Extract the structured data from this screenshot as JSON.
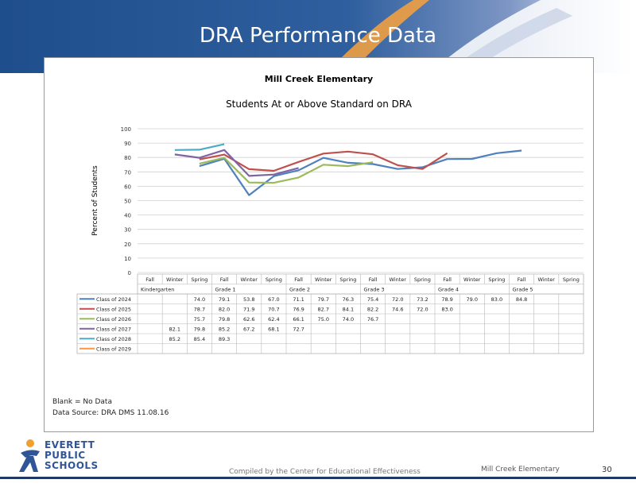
{
  "slide": {
    "title": "DRA Performance Data",
    "footer_center": "Compiled by the Center for Educational Effectiveness",
    "footer_right": "Mill Creek Elementary",
    "page_number": "30",
    "logo_lines": [
      "EVERETT",
      "PUBLIC",
      "SCHOOLS"
    ]
  },
  "notes": [
    "Blank = No Data",
    "Data Source: DRA DMS 11.08.16"
  ],
  "chart_data": {
    "type": "line",
    "title": "Mill Creek Elementary",
    "subtitle": "Students At or Above Standard on DRA",
    "ylabel": "Percent of Students",
    "ylim": [
      0,
      100
    ],
    "yticks": [
      0,
      10,
      20,
      30,
      40,
      50,
      60,
      70,
      80,
      90,
      100
    ],
    "grid": true,
    "legend_position": "table-left",
    "categories": [
      "Fall",
      "Winter",
      "Spring",
      "Fall",
      "Winter",
      "Spring",
      "Fall",
      "Winter",
      "Spring",
      "Fall",
      "Winter",
      "Spring",
      "Fall",
      "Winter",
      "Spring",
      "Fall",
      "Winter",
      "Spring"
    ],
    "grade_labels": [
      "Kindergarten",
      "Grade 1",
      "Grade 2",
      "Grade 3",
      "Grade 4",
      "Grade 5"
    ],
    "series": [
      {
        "name": "Class of 2024",
        "color": "#4f81bd",
        "values": [
          null,
          null,
          74.0,
          79.1,
          53.8,
          67.0,
          71.1,
          79.7,
          76.3,
          75.4,
          72.0,
          73.2,
          78.9,
          79.0,
          83.0,
          84.8,
          null,
          null
        ]
      },
      {
        "name": "Class of 2025",
        "color": "#c0504d",
        "values": [
          null,
          null,
          78.7,
          82.0,
          71.9,
          70.7,
          76.9,
          82.7,
          84.1,
          82.2,
          74.6,
          72.0,
          83.0,
          null,
          null,
          null,
          null,
          null
        ]
      },
      {
        "name": "Class of 2026",
        "color": "#9bbb59",
        "values": [
          null,
          null,
          75.7,
          79.8,
          62.6,
          62.4,
          66.1,
          75.0,
          74.0,
          76.7,
          null,
          null,
          null,
          null,
          null,
          null,
          null,
          null
        ]
      },
      {
        "name": "Class of 2027",
        "color": "#8064a2",
        "values": [
          null,
          82.1,
          79.8,
          85.2,
          67.2,
          68.1,
          72.7,
          null,
          null,
          null,
          null,
          null,
          null,
          null,
          null,
          null,
          null,
          null
        ]
      },
      {
        "name": "Class of 2028",
        "color": "#4bacc6",
        "values": [
          null,
          85.2,
          85.4,
          89.3,
          null,
          null,
          null,
          null,
          null,
          null,
          null,
          null,
          null,
          null,
          null,
          null,
          null,
          null
        ]
      },
      {
        "name": "Class of 2029",
        "color": "#f79646",
        "values": [
          null,
          null,
          null,
          null,
          null,
          null,
          null,
          null,
          null,
          null,
          null,
          null,
          null,
          null,
          null,
          null,
          null,
          null
        ]
      }
    ]
  }
}
